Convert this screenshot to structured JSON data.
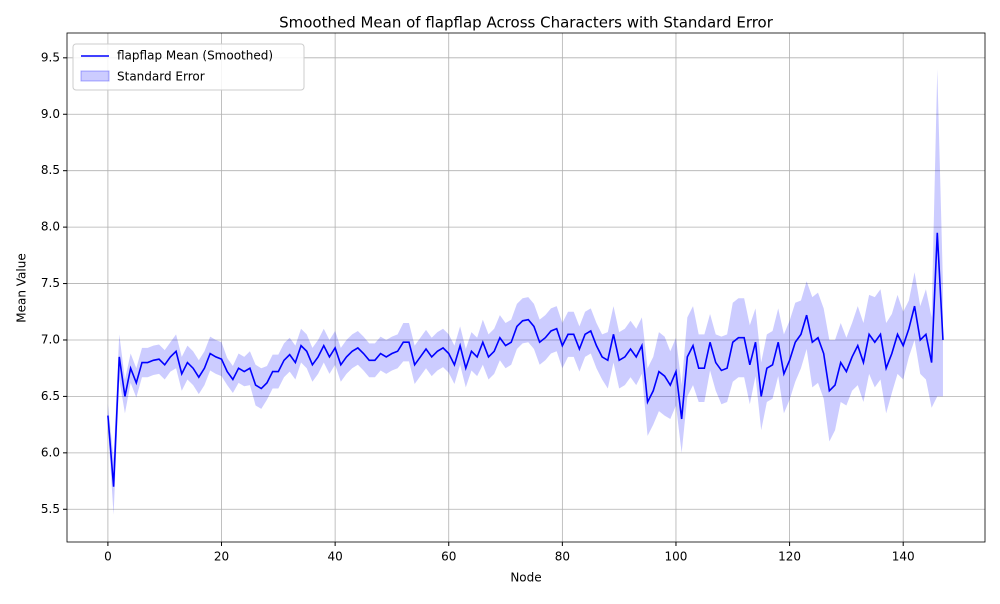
{
  "chart_data": {
    "type": "line-band",
    "title": "Smoothed Mean of flapflap Across Characters with Standard Error",
    "x_label": "Node",
    "y_label": "Mean Value",
    "x": [
      0,
      1,
      2,
      3,
      4,
      5,
      6,
      7,
      8,
      9,
      10,
      11,
      12,
      13,
      14,
      15,
      16,
      17,
      18,
      19,
      20,
      21,
      22,
      23,
      24,
      25,
      26,
      27,
      28,
      29,
      30,
      31,
      32,
      33,
      34,
      35,
      36,
      37,
      38,
      39,
      40,
      41,
      42,
      43,
      44,
      45,
      46,
      47,
      48,
      49,
      50,
      51,
      52,
      53,
      54,
      55,
      56,
      57,
      58,
      59,
      60,
      61,
      62,
      63,
      64,
      65,
      66,
      67,
      68,
      69,
      70,
      71,
      72,
      73,
      74,
      75,
      76,
      77,
      78,
      79,
      80,
      81,
      82,
      83,
      84,
      85,
      86,
      87,
      88,
      89,
      90,
      91,
      92,
      93,
      94,
      95,
      96,
      97,
      98,
      99,
      100,
      101,
      102,
      103,
      104,
      105,
      106,
      107,
      108,
      109,
      110,
      111,
      112,
      113,
      114,
      115,
      116,
      117,
      118,
      119,
      120,
      121,
      122,
      123,
      124,
      125,
      126,
      127,
      128,
      129,
      130,
      131,
      132,
      133,
      134,
      135,
      136,
      137,
      138,
      139,
      140,
      141,
      142,
      143,
      144,
      145,
      146,
      147
    ],
    "series": [
      {
        "name": "flapflap Mean (Smoothed)",
        "color": "#0000ff",
        "values": [
          6.33,
          5.7,
          6.85,
          6.5,
          6.75,
          6.62,
          6.8,
          6.8,
          6.82,
          6.83,
          6.78,
          6.85,
          6.9,
          6.7,
          6.8,
          6.75,
          6.67,
          6.75,
          6.88,
          6.85,
          6.83,
          6.72,
          6.65,
          6.75,
          6.72,
          6.75,
          6.6,
          6.57,
          6.62,
          6.72,
          6.72,
          6.82,
          6.87,
          6.8,
          6.95,
          6.9,
          6.78,
          6.85,
          6.95,
          6.85,
          6.93,
          6.78,
          6.85,
          6.9,
          6.93,
          6.88,
          6.82,
          6.82,
          6.88,
          6.85,
          6.88,
          6.9,
          6.98,
          6.98,
          6.78,
          6.85,
          6.92,
          6.85,
          6.9,
          6.93,
          6.88,
          6.78,
          6.95,
          6.75,
          6.9,
          6.85,
          6.98,
          6.85,
          6.9,
          7.02,
          6.95,
          6.98,
          7.12,
          7.17,
          7.18,
          7.12,
          6.98,
          7.02,
          7.08,
          7.1,
          6.95,
          7.05,
          7.05,
          6.92,
          7.05,
          7.08,
          6.95,
          6.85,
          6.82,
          7.05,
          6.82,
          6.85,
          6.92,
          6.85,
          6.95,
          6.45,
          6.55,
          6.72,
          6.68,
          6.6,
          6.72,
          6.3,
          6.85,
          6.95,
          6.75,
          6.75,
          6.98,
          6.8,
          6.73,
          6.75,
          6.98,
          7.02,
          7.02,
          6.78,
          6.98,
          6.5,
          6.75,
          6.78,
          6.98,
          6.7,
          6.82,
          6.98,
          7.05,
          7.22,
          6.98,
          7.02,
          6.88,
          6.55,
          6.6,
          6.8,
          6.72,
          6.85,
          6.95,
          6.8,
          7.05,
          6.98,
          7.05,
          6.75,
          6.88,
          7.05,
          6.95,
          7.1,
          7.3,
          7.0,
          7.05,
          6.8,
          7.95,
          7.0
        ]
      },
      {
        "name": "Standard Error",
        "color": "#0000ff",
        "values": [
          0.1,
          0.25,
          0.2,
          0.15,
          0.13,
          0.13,
          0.13,
          0.13,
          0.13,
          0.13,
          0.13,
          0.13,
          0.15,
          0.15,
          0.15,
          0.15,
          0.15,
          0.15,
          0.15,
          0.15,
          0.15,
          0.12,
          0.12,
          0.13,
          0.13,
          0.15,
          0.18,
          0.18,
          0.15,
          0.15,
          0.15,
          0.15,
          0.15,
          0.15,
          0.15,
          0.15,
          0.15,
          0.15,
          0.15,
          0.15,
          0.15,
          0.15,
          0.15,
          0.15,
          0.15,
          0.15,
          0.15,
          0.15,
          0.15,
          0.15,
          0.15,
          0.15,
          0.17,
          0.17,
          0.17,
          0.17,
          0.17,
          0.17,
          0.17,
          0.17,
          0.17,
          0.17,
          0.17,
          0.17,
          0.17,
          0.17,
          0.2,
          0.2,
          0.2,
          0.2,
          0.2,
          0.2,
          0.2,
          0.2,
          0.2,
          0.2,
          0.2,
          0.2,
          0.2,
          0.2,
          0.2,
          0.2,
          0.2,
          0.2,
          0.2,
          0.2,
          0.2,
          0.2,
          0.25,
          0.25,
          0.25,
          0.25,
          0.25,
          0.25,
          0.25,
          0.3,
          0.3,
          0.35,
          0.35,
          0.3,
          0.3,
          0.3,
          0.35,
          0.35,
          0.3,
          0.3,
          0.25,
          0.25,
          0.3,
          0.3,
          0.35,
          0.35,
          0.35,
          0.35,
          0.3,
          0.3,
          0.3,
          0.3,
          0.3,
          0.35,
          0.35,
          0.35,
          0.3,
          0.3,
          0.4,
          0.4,
          0.4,
          0.45,
          0.4,
          0.35,
          0.3,
          0.3,
          0.35,
          0.35,
          0.35,
          0.4,
          0.4,
          0.4,
          0.35,
          0.35,
          0.3,
          0.25,
          0.3,
          0.3,
          0.4,
          0.4,
          1.45,
          0.5
        ]
      }
    ],
    "xlim": [
      -7.2,
      154.4
    ],
    "ylim": [
      5.21,
      9.72
    ],
    "xticks": [
      0,
      20,
      40,
      60,
      80,
      100,
      120,
      140
    ],
    "yticks": [
      5.5,
      {
        "value": 6,
        "label": "6.0"
      },
      6.5,
      {
        "value": 7,
        "label": "7.0"
      },
      7.5,
      {
        "value": 8,
        "label": "8.0"
      },
      8.5,
      {
        "value": 9,
        "label": "9.0"
      },
      9.5
    ],
    "grid": true,
    "legend": "upper-left"
  }
}
